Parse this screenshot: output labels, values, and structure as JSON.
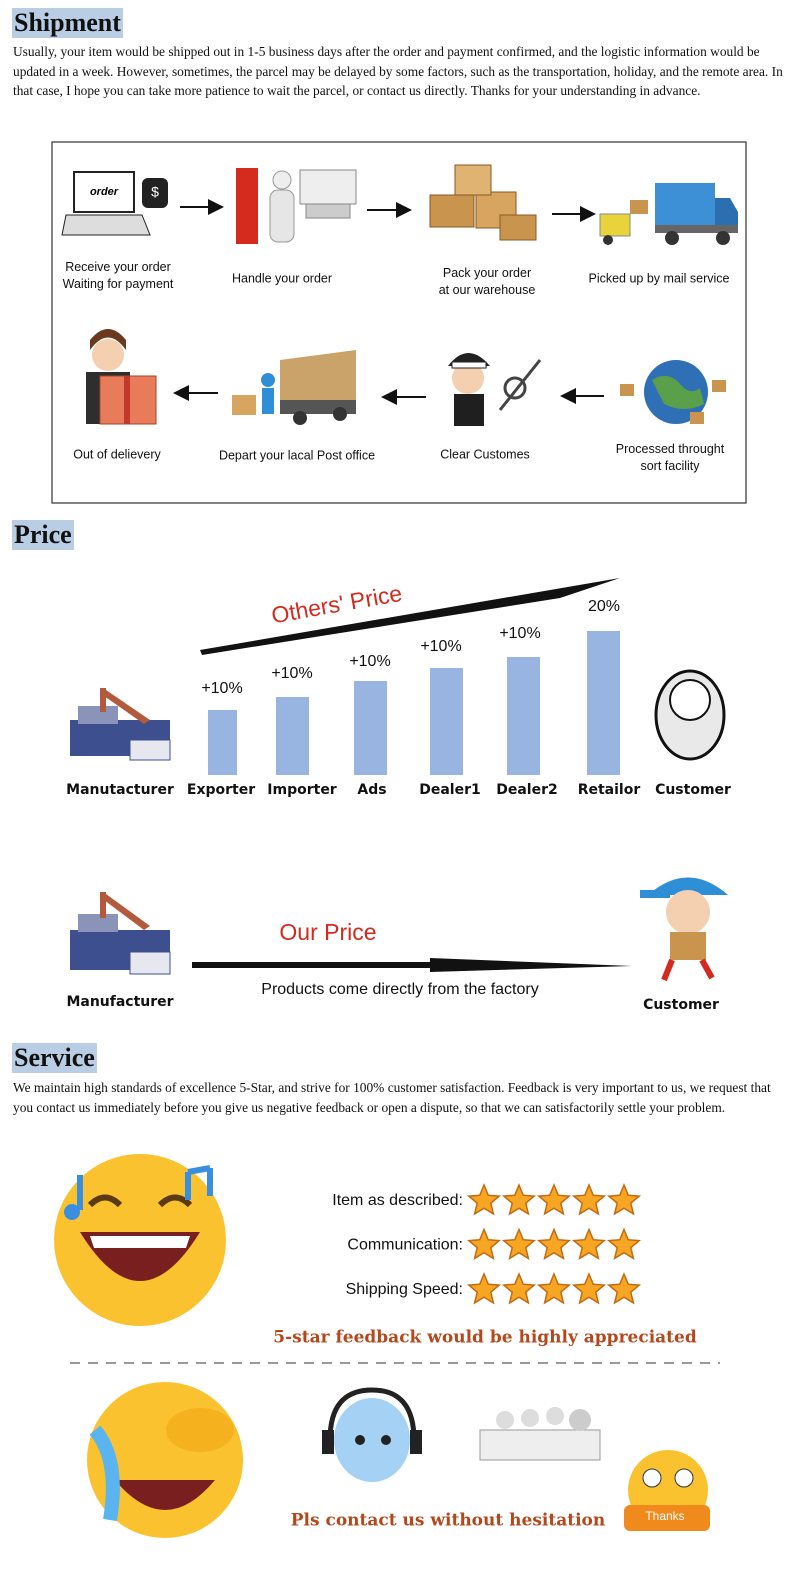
{
  "shipment": {
    "title": "Shipment",
    "text": "Usually, your item would be shipped out in 1-5 business days after the order and  payment confirmed, and the logistic information would be updated in a week. However, sometimes, the parcel may be delayed by some factors, such as the transportation, holiday, and the remote area. In that case, I hope you can take more patience to wait the parcel, or contact us directly. Thanks for your understanding in advance.",
    "icon_order": "order",
    "steps": [
      {
        "label": [
          "Receive your order",
          "Waiting for payment"
        ]
      },
      {
        "label": [
          "Handle your order"
        ]
      },
      {
        "label": [
          "Pack your order",
          "at our warehouse"
        ]
      },
      {
        "label": [
          "Picked up by mail service"
        ]
      },
      {
        "label": [
          "Processed throught",
          "sort facility"
        ]
      },
      {
        "label": [
          "Clear Customes"
        ]
      },
      {
        "label": [
          "Depart your lacal Post office"
        ]
      },
      {
        "label": [
          "Out of delievery"
        ]
      }
    ]
  },
  "price": {
    "title": "Price",
    "others_label": "Others' Price",
    "increments": [
      "+10%",
      "+10%",
      "+10%",
      "+10%",
      "+10%",
      "20%"
    ],
    "chain": [
      "Manutacturer",
      "Exporter",
      "Importer",
      "Ads",
      "Dealer1",
      "Dealer2",
      "Retailor",
      "Customer"
    ],
    "our_label": "Our Price",
    "our_note": "Products come directly from the factory",
    "our_from": "Manufacturer",
    "our_to": "Customer"
  },
  "service": {
    "title": "Service",
    "text": "We maintain high standards of excellence 5-Star, and strive for 100% customer satisfaction. Feedback is very important to us, we request that you contact us immediately before you give us negative feedback or open a dispute, so that we can satisfactorily settle your problem.",
    "ratings": [
      {
        "label": "Item as described:",
        "stars": 5
      },
      {
        "label": "Communication:",
        "stars": 5
      },
      {
        "label": "Shipping Speed:",
        "stars": 5
      }
    ],
    "appeal": "5-star feedback would be highly appreciated",
    "contact": "Pls contact us without hesitation",
    "thanks": "Thanks"
  }
}
